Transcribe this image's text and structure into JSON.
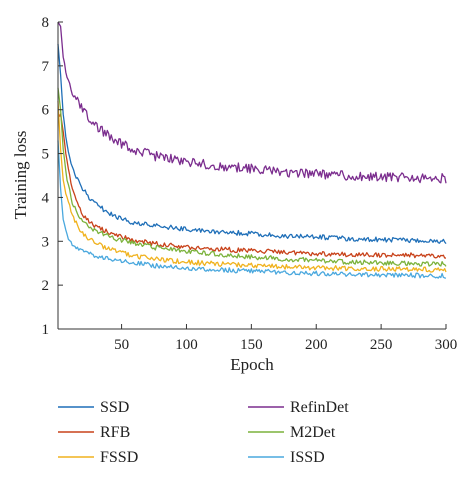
{
  "chart_data": {
    "type": "line",
    "xlabel": "Epoch",
    "ylabel": "Training loss",
    "xlim": [
      1,
      300
    ],
    "ylim": [
      1,
      8
    ],
    "xticks": [
      50,
      100,
      150,
      200,
      250,
      300
    ],
    "yticks": [
      1,
      2,
      3,
      4,
      5,
      6,
      7,
      8
    ],
    "grid": false,
    "legend_position": "bottom",
    "series": [
      {
        "name": "SSD",
        "color": "#1f6fb8",
        "x": [
          1,
          3,
          5,
          8,
          12,
          16,
          20,
          25,
          30,
          40,
          50,
          60,
          75,
          100,
          125,
          150,
          175,
          200,
          225,
          250,
          275,
          300
        ],
        "y": [
          7.5,
          6.8,
          5.9,
          5.2,
          4.7,
          4.4,
          4.2,
          4.0,
          3.85,
          3.65,
          3.5,
          3.42,
          3.35,
          3.28,
          3.22,
          3.17,
          3.12,
          3.1,
          3.06,
          3.04,
          3.02,
          3.0
        ]
      },
      {
        "name": "RefinDet",
        "color": "#7b2d8e",
        "x": [
          1,
          3,
          5,
          8,
          12,
          16,
          20,
          25,
          30,
          40,
          50,
          60,
          75,
          100,
          125,
          150,
          175,
          200,
          225,
          250,
          275,
          300
        ],
        "y": [
          8.0,
          7.9,
          7.2,
          6.8,
          6.45,
          6.2,
          6.0,
          5.8,
          5.65,
          5.4,
          5.22,
          5.08,
          4.95,
          4.82,
          4.72,
          4.65,
          4.58,
          4.53,
          4.5,
          4.47,
          4.45,
          4.43
        ]
      },
      {
        "name": "RFB",
        "color": "#c8421a",
        "x": [
          1,
          3,
          5,
          8,
          12,
          16,
          20,
          25,
          30,
          40,
          50,
          60,
          75,
          100,
          125,
          150,
          175,
          200,
          225,
          250,
          275,
          300
        ],
        "y": [
          5.8,
          5.9,
          5.5,
          4.8,
          4.2,
          3.85,
          3.6,
          3.45,
          3.35,
          3.2,
          3.1,
          3.02,
          2.95,
          2.87,
          2.82,
          2.78,
          2.75,
          2.72,
          2.7,
          2.69,
          2.68,
          2.67
        ]
      },
      {
        "name": "M2Det",
        "color": "#7bb23c",
        "x": [
          1,
          3,
          5,
          8,
          12,
          16,
          20,
          25,
          30,
          40,
          50,
          60,
          75,
          100,
          125,
          150,
          175,
          200,
          225,
          250,
          275,
          300
        ],
        "y": [
          6.5,
          6.0,
          5.1,
          4.4,
          3.9,
          3.6,
          3.45,
          3.33,
          3.25,
          3.12,
          3.02,
          2.95,
          2.86,
          2.78,
          2.7,
          2.64,
          2.6,
          2.56,
          2.53,
          2.51,
          2.49,
          2.48
        ]
      },
      {
        "name": "FSSD",
        "color": "#f0b21e",
        "x": [
          1,
          3,
          5,
          8,
          12,
          16,
          20,
          25,
          30,
          40,
          50,
          60,
          75,
          100,
          125,
          150,
          175,
          200,
          225,
          250,
          275,
          300
        ],
        "y": [
          6.2,
          5.1,
          4.4,
          3.95,
          3.6,
          3.35,
          3.2,
          3.05,
          2.95,
          2.82,
          2.74,
          2.67,
          2.6,
          2.53,
          2.48,
          2.45,
          2.42,
          2.4,
          2.38,
          2.37,
          2.36,
          2.35
        ]
      },
      {
        "name": "ISSD",
        "color": "#4aa8de",
        "x": [
          1,
          3,
          5,
          8,
          12,
          16,
          20,
          25,
          30,
          40,
          50,
          60,
          75,
          100,
          125,
          150,
          175,
          200,
          225,
          250,
          275,
          300
        ],
        "y": [
          5.3,
          4.2,
          3.5,
          3.15,
          2.95,
          2.85,
          2.78,
          2.72,
          2.67,
          2.6,
          2.55,
          2.5,
          2.45,
          2.39,
          2.35,
          2.32,
          2.29,
          2.27,
          2.25,
          2.24,
          2.22,
          2.21
        ]
      }
    ]
  }
}
